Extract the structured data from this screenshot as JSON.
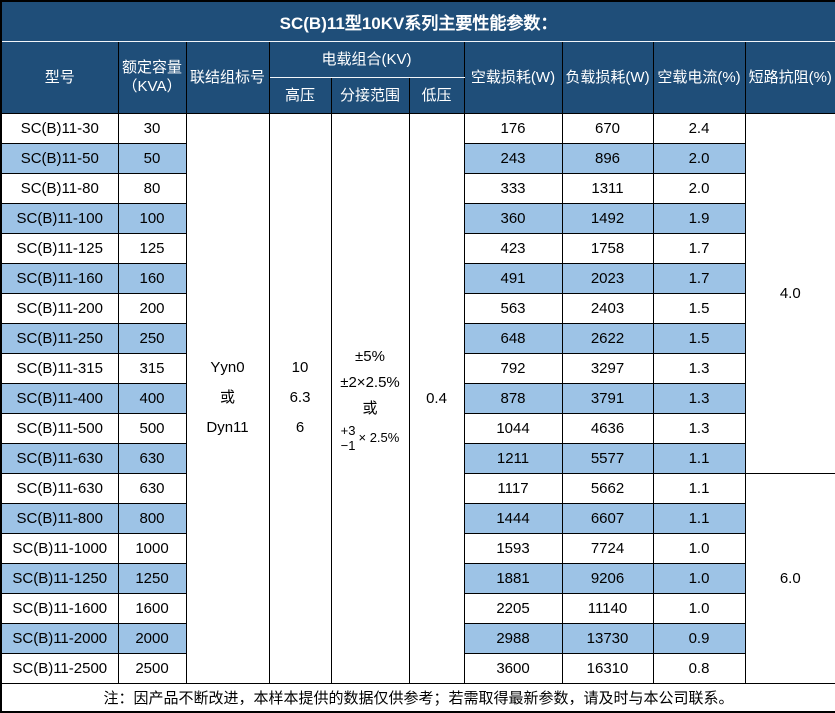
{
  "title": "SC(B)11型10KV系列主要性能参数：",
  "header": {
    "model": "型号",
    "capacity_line1": "额定容量",
    "capacity_line2": "（KVA）",
    "connection": "联结组标号",
    "voltage_group": "电载组合(KV)",
    "hv": "高压",
    "tap_range": "分接范围",
    "lv": "低压",
    "no_load_loss": "空载损耗(W)",
    "load_loss": "负载损耗(W)",
    "no_load_current": "空载电流(%)",
    "impedance": "短路抗阻(%)"
  },
  "merged": {
    "connection_lines": [
      "Yyn0",
      "或",
      "Dyn11"
    ],
    "hv_lines": [
      "10",
      "6.3",
      "6"
    ],
    "tap_line1": "±5%",
    "tap_line2": "±2×2.5%",
    "tap_line3": "或",
    "tap_plus": "+3",
    "tap_minus": "−1",
    "tap_times": "× 2.5%",
    "lv_value": "0.4",
    "impedance_groups": [
      {
        "value": "4.0",
        "rows": 12
      },
      {
        "value": "6.0",
        "rows": 7
      }
    ]
  },
  "rows": [
    {
      "model": "SC(B)11-30",
      "kva": "30",
      "no_load": "176",
      "load": "670",
      "current": "2.4"
    },
    {
      "model": "SC(B)11-50",
      "kva": "50",
      "no_load": "243",
      "load": "896",
      "current": "2.0"
    },
    {
      "model": "SC(B)11-80",
      "kva": "80",
      "no_load": "333",
      "load": "1311",
      "current": "2.0"
    },
    {
      "model": "SC(B)11-100",
      "kva": "100",
      "no_load": "360",
      "load": "1492",
      "current": "1.9"
    },
    {
      "model": "SC(B)11-125",
      "kva": "125",
      "no_load": "423",
      "load": "1758",
      "current": "1.7"
    },
    {
      "model": "SC(B)11-160",
      "kva": "160",
      "no_load": "491",
      "load": "2023",
      "current": "1.7"
    },
    {
      "model": "SC(B)11-200",
      "kva": "200",
      "no_load": "563",
      "load": "2403",
      "current": "1.5"
    },
    {
      "model": "SC(B)11-250",
      "kva": "250",
      "no_load": "648",
      "load": "2622",
      "current": "1.5"
    },
    {
      "model": "SC(B)11-315",
      "kva": "315",
      "no_load": "792",
      "load": "3297",
      "current": "1.3"
    },
    {
      "model": "SC(B)11-400",
      "kva": "400",
      "no_load": "878",
      "load": "3791",
      "current": "1.3"
    },
    {
      "model": "SC(B)11-500",
      "kva": "500",
      "no_load": "1044",
      "load": "4636",
      "current": "1.3"
    },
    {
      "model": "SC(B)11-630",
      "kva": "630",
      "no_load": "1211",
      "load": "5577",
      "current": "1.1"
    },
    {
      "model": "SC(B)11-630",
      "kva": "630",
      "no_load": "1117",
      "load": "5662",
      "current": "1.1"
    },
    {
      "model": "SC(B)11-800",
      "kva": "800",
      "no_load": "1444",
      "load": "6607",
      "current": "1.1"
    },
    {
      "model": "SC(B)11-1000",
      "kva": "1000",
      "no_load": "1593",
      "load": "7724",
      "current": "1.0"
    },
    {
      "model": "SC(B)11-1250",
      "kva": "1250",
      "no_load": "1881",
      "load": "9206",
      "current": "1.0"
    },
    {
      "model": "SC(B)11-1600",
      "kva": "1600",
      "no_load": "2205",
      "load": "11140",
      "current": "1.0"
    },
    {
      "model": "SC(B)11-2000",
      "kva": "2000",
      "no_load": "2988",
      "load": "13730",
      "current": "0.9"
    },
    {
      "model": "SC(B)11-2500",
      "kva": "2500",
      "no_load": "3600",
      "load": "16310",
      "current": "0.8"
    }
  ],
  "footer": "注：因产品不断改进，本样本提供的数据仅供参考；若需取得最新参数，请及时与本公司联系。",
  "colors": {
    "header_bg": "#1F4E79",
    "header_text": "#FFFFFF",
    "row_alt_bg": "#9DC3E6",
    "row_bg": "#FFFFFF",
    "border": "#000000",
    "text": "#000000"
  }
}
